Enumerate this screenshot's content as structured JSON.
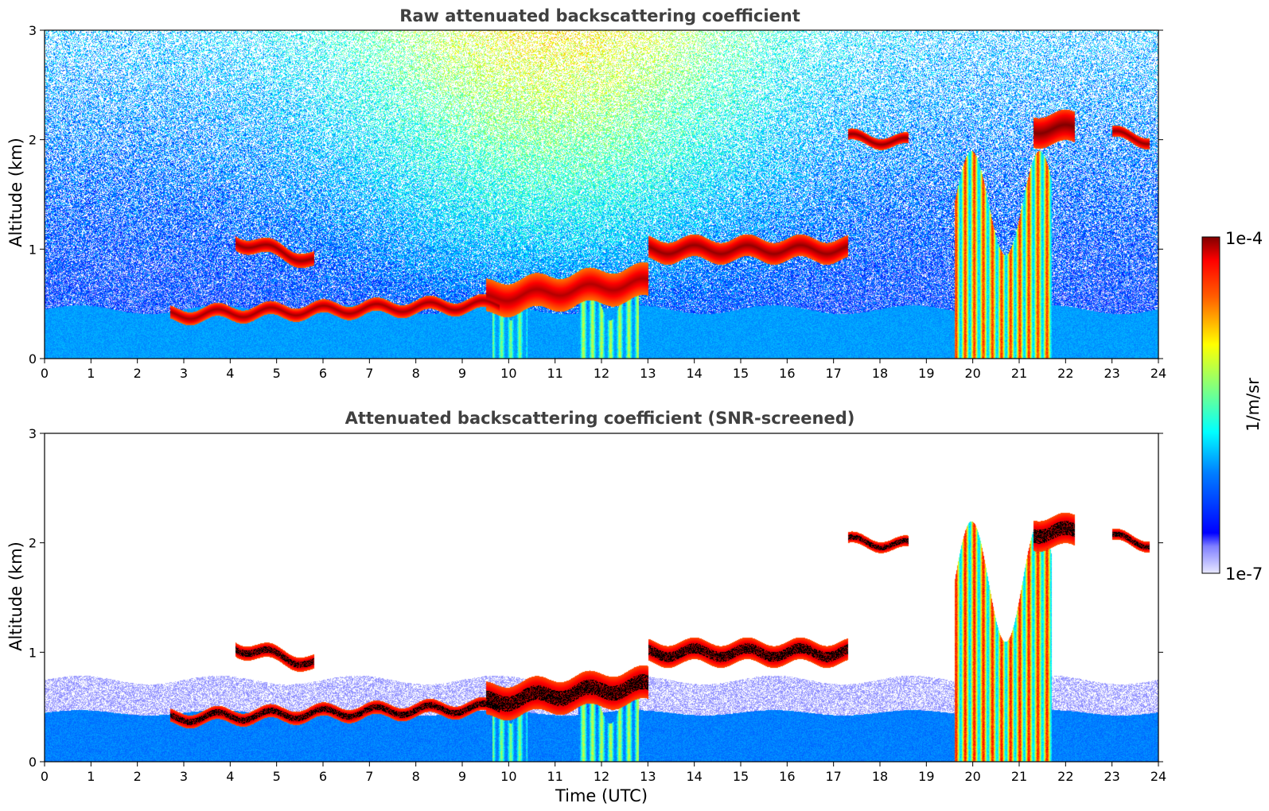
{
  "chart_data": [
    {
      "type": "heatmap",
      "title": "Raw attenuated backscattering coefficient",
      "xlabel": "",
      "ylabel": "Altitude (km)",
      "xlim": [
        0,
        24
      ],
      "ylim": [
        0,
        3
      ],
      "xticks": [
        0,
        1,
        2,
        3,
        4,
        5,
        6,
        7,
        8,
        9,
        10,
        11,
        12,
        13,
        14,
        15,
        16,
        17,
        18,
        19,
        20,
        21,
        22,
        23,
        24
      ],
      "yticks": [
        0,
        1,
        2,
        3
      ],
      "screened": false,
      "noise_background": true,
      "features": [
        {
          "kind": "boundary_layer",
          "t": [
            0,
            24
          ],
          "top_km": 0.45,
          "level": 0.28
        },
        {
          "kind": "aerosol_layer",
          "t": [
            2.7,
            9.8
          ],
          "alt_start": 0.4,
          "alt_end": 0.5,
          "thickness": 0.12,
          "level": 0.97
        },
        {
          "kind": "aerosol_layer",
          "t": [
            4.1,
            5.8
          ],
          "alt_start": 1.08,
          "alt_end": 0.9,
          "thickness": 0.13,
          "level": 0.98
        },
        {
          "kind": "cloud_layer",
          "t": [
            9.5,
            13.0
          ],
          "alt_start": 0.55,
          "alt_end": 0.7,
          "thickness": 0.3,
          "level": 0.95
        },
        {
          "kind": "cloud_layer",
          "t": [
            13.0,
            17.3
          ],
          "alt_start": 1.0,
          "alt_end": 1.0,
          "thickness": 0.2,
          "level": 0.98
        },
        {
          "kind": "cloud_layer",
          "t": [
            17.3,
            18.6
          ],
          "alt_start": 2.02,
          "alt_end": 1.98,
          "thickness": 0.1,
          "level": 0.99
        },
        {
          "kind": "cloud_layer",
          "t": [
            21.3,
            22.2
          ],
          "alt_start": 2.1,
          "alt_end": 2.1,
          "thickness": 0.28,
          "level": 1.0
        },
        {
          "kind": "cloud_layer",
          "t": [
            23.0,
            23.8
          ],
          "alt_start": 2.05,
          "alt_end": 2.0,
          "thickness": 0.1,
          "level": 0.99
        },
        {
          "kind": "precip_column",
          "t": [
            9.65,
            10.4
          ],
          "top_km": 0.7,
          "level": 0.5
        },
        {
          "kind": "precip_column",
          "t": [
            11.5,
            12.8
          ],
          "top_km": 0.7,
          "level": 0.55
        },
        {
          "kind": "precip_column",
          "t": [
            19.6,
            21.7
          ],
          "top_km": 1.9,
          "level": 0.82
        }
      ]
    },
    {
      "type": "heatmap",
      "title": "Attenuated backscattering coefficient (SNR-screened)",
      "xlabel": "Time (UTC)",
      "ylabel": "Altitude (km)",
      "xlim": [
        0,
        24
      ],
      "ylim": [
        0,
        3
      ],
      "xticks": [
        0,
        1,
        2,
        3,
        4,
        5,
        6,
        7,
        8,
        9,
        10,
        11,
        12,
        13,
        14,
        15,
        16,
        17,
        18,
        19,
        20,
        21,
        22,
        23,
        24
      ],
      "yticks": [
        0,
        1,
        2,
        3
      ],
      "screened": true,
      "noise_background": false,
      "features": [
        {
          "kind": "boundary_layer",
          "t": [
            0,
            24
          ],
          "top_km": 0.75,
          "level": 0.25
        },
        {
          "kind": "aerosol_layer",
          "t": [
            2.7,
            9.8
          ],
          "alt_start": 0.4,
          "alt_end": 0.5,
          "thickness": 0.12,
          "level": 1.0
        },
        {
          "kind": "aerosol_layer",
          "t": [
            4.1,
            5.8
          ],
          "alt_start": 1.05,
          "alt_end": 0.9,
          "thickness": 0.13,
          "level": 1.0
        },
        {
          "kind": "cloud_layer",
          "t": [
            9.5,
            13.0
          ],
          "alt_start": 0.55,
          "alt_end": 0.7,
          "thickness": 0.3,
          "level": 1.0
        },
        {
          "kind": "cloud_layer",
          "t": [
            13.0,
            17.3
          ],
          "alt_start": 1.0,
          "alt_end": 1.0,
          "thickness": 0.2,
          "level": 1.0
        },
        {
          "kind": "cloud_layer",
          "t": [
            17.3,
            18.6
          ],
          "alt_start": 2.02,
          "alt_end": 1.98,
          "thickness": 0.1,
          "level": 1.0
        },
        {
          "kind": "cloud_layer",
          "t": [
            21.3,
            22.2
          ],
          "alt_start": 2.1,
          "alt_end": 2.1,
          "thickness": 0.28,
          "level": 1.0
        },
        {
          "kind": "cloud_layer",
          "t": [
            23.0,
            23.8
          ],
          "alt_start": 2.05,
          "alt_end": 2.0,
          "thickness": 0.1,
          "level": 1.0
        },
        {
          "kind": "precip_column",
          "t": [
            9.65,
            10.4
          ],
          "top_km": 0.7,
          "level": 0.5
        },
        {
          "kind": "precip_column",
          "t": [
            11.5,
            12.8
          ],
          "top_km": 0.7,
          "level": 0.55
        },
        {
          "kind": "precip_column",
          "t": [
            19.6,
            21.7
          ],
          "top_km": 2.2,
          "level": 0.85
        }
      ]
    }
  ],
  "colorbar": {
    "label": "1/m/sr",
    "max_label": "1e-4",
    "min_label": "1e-7",
    "scale": "log",
    "range": [
      1e-07,
      0.0001
    ],
    "colormap": "jet"
  }
}
